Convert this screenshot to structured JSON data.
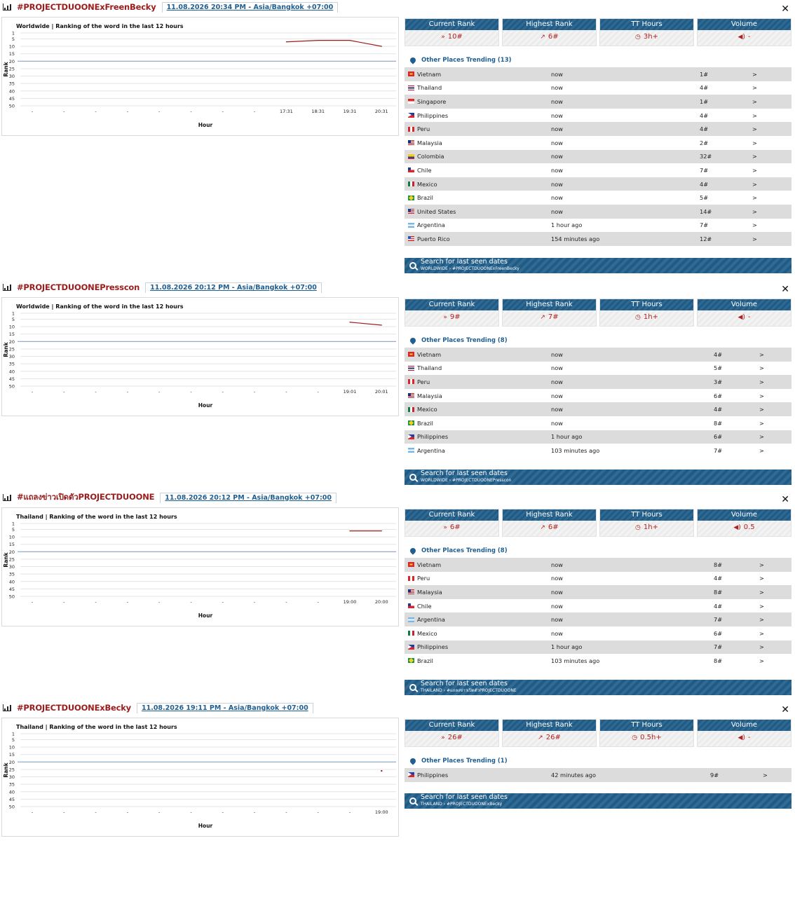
{
  "trends": [
    {
      "title": "#PROJECTDUOONExFreenBecky",
      "date": "11.08.2026 20:34 PM - Asia/Bangkok +07:00",
      "chart_data": {
        "type": "line",
        "title": "Worldwide | Ranking of the word in the last 12 hours",
        "xlabel": "Hour",
        "ylabel": "Rank",
        "y_ticks": [
          1,
          5,
          10,
          15,
          20,
          25,
          30,
          35,
          40,
          45,
          50
        ],
        "x_ticks": [
          "-",
          "-",
          "-",
          "-",
          "-",
          "-",
          "-",
          "-",
          "17:31",
          "18:31",
          "19:31",
          "20:31"
        ],
        "series": [
          {
            "x": [
              "17:31",
              "18:31",
              "19:31",
              "20:31"
            ],
            "values": [
              7,
              6,
              6,
              10
            ]
          }
        ],
        "reference_line": 20,
        "line_color": "#9b1c1c"
      },
      "stats": {
        "current_rank": "10#",
        "highest_rank": "6#",
        "tt_hours": "3h+",
        "volume": "-"
      },
      "places_heading": "Other Places Trending (13)",
      "places": [
        {
          "country": "Vietnam",
          "time": "now",
          "rank": "1#",
          "go": ">"
        },
        {
          "country": "Thailand",
          "time": "now",
          "rank": "4#",
          "go": ">"
        },
        {
          "country": "Singapore",
          "time": "now",
          "rank": "1#",
          "go": ">"
        },
        {
          "country": "Philippines",
          "time": "now",
          "rank": "4#",
          "go": ">"
        },
        {
          "country": "Peru",
          "time": "now",
          "rank": "4#",
          "go": ">"
        },
        {
          "country": "Malaysia",
          "time": "now",
          "rank": "2#",
          "go": ">"
        },
        {
          "country": "Colombia",
          "time": "now",
          "rank": "32#",
          "go": ">"
        },
        {
          "country": "Chile",
          "time": "now",
          "rank": "7#",
          "go": ">"
        },
        {
          "country": "Mexico",
          "time": "now",
          "rank": "4#",
          "go": ">"
        },
        {
          "country": "Brazil",
          "time": "now",
          "rank": "5#",
          "go": ">"
        },
        {
          "country": "United States",
          "time": "now",
          "rank": "14#",
          "go": ">"
        },
        {
          "country": "Argentina",
          "time": "1 hour ago",
          "rank": "7#",
          "go": ">"
        },
        {
          "country": "Puerto Rico",
          "time": "154 minutes ago",
          "rank": "12#",
          "go": ">"
        }
      ],
      "search": {
        "label": "Search for last seen dates",
        "path": "WORLDWIDE › #PROJECTDUOONExFreenBecky"
      }
    },
    {
      "title": "#PROJECTDUOONEPresscon",
      "date": "11.08.2026 20:12 PM - Asia/Bangkok +07:00",
      "chart_data": {
        "type": "line",
        "title": "Worldwide | Ranking of the word in the last 12 hours",
        "xlabel": "Hour",
        "ylabel": "Rank",
        "y_ticks": [
          1,
          5,
          10,
          15,
          20,
          25,
          30,
          35,
          40,
          45,
          50
        ],
        "x_ticks": [
          "-",
          "-",
          "-",
          "-",
          "-",
          "-",
          "-",
          "-",
          "-",
          "-",
          "19:01",
          "20:01"
        ],
        "series": [
          {
            "x": [
              "19:01",
              "20:01"
            ],
            "values": [
              7,
              9
            ]
          }
        ],
        "reference_line": 20,
        "line_color": "#9b1c1c"
      },
      "stats": {
        "current_rank": "9#",
        "highest_rank": "7#",
        "tt_hours": "1h+",
        "volume": "-"
      },
      "places_heading": "Other Places Trending (8)",
      "places": [
        {
          "country": "Vietnam",
          "time": "now",
          "rank": "4#",
          "go": ">"
        },
        {
          "country": "Thailand",
          "time": "now",
          "rank": "5#",
          "go": ">"
        },
        {
          "country": "Peru",
          "time": "now",
          "rank": "3#",
          "go": ">"
        },
        {
          "country": "Malaysia",
          "time": "now",
          "rank": "6#",
          "go": ">"
        },
        {
          "country": "Mexico",
          "time": "now",
          "rank": "4#",
          "go": ">"
        },
        {
          "country": "Brazil",
          "time": "now",
          "rank": "8#",
          "go": ">"
        },
        {
          "country": "Philippines",
          "time": "1 hour ago",
          "rank": "6#",
          "go": ">"
        },
        {
          "country": "Argentina",
          "time": "103 minutes ago",
          "rank": "7#",
          "go": ">"
        }
      ],
      "search": {
        "label": "Search for last seen dates",
        "path": "WORLDWIDE › #PROJECTDUOONEPresscon"
      }
    },
    {
      "title": "#แถลงข่าวเปิดตัวPROJECTDUOONE",
      "date": "11.08.2026 20:12 PM - Asia/Bangkok +07:00",
      "chart_data": {
        "type": "line",
        "title": "Thailand | Ranking of the word in the last 12 hours",
        "xlabel": "Hour",
        "ylabel": "Rank",
        "y_ticks": [
          1,
          5,
          10,
          15,
          20,
          25,
          30,
          35,
          40,
          45,
          50
        ],
        "x_ticks": [
          "-",
          "-",
          "-",
          "-",
          "-",
          "-",
          "-",
          "-",
          "-",
          "-",
          "19:00",
          "20:00"
        ],
        "series": [
          {
            "x": [
              "19:00",
              "20:00"
            ],
            "values": [
              6,
              6
            ]
          }
        ],
        "reference_line": 20,
        "line_color": "#9b1c1c"
      },
      "stats": {
        "current_rank": "6#",
        "highest_rank": "6#",
        "tt_hours": "1h+",
        "volume": "0.5"
      },
      "places_heading": "Other Places Trending (8)",
      "places": [
        {
          "country": "Vietnam",
          "time": "now",
          "rank": "8#",
          "go": ">"
        },
        {
          "country": "Peru",
          "time": "now",
          "rank": "4#",
          "go": ">"
        },
        {
          "country": "Malaysia",
          "time": "now",
          "rank": "8#",
          "go": ">"
        },
        {
          "country": "Chile",
          "time": "now",
          "rank": "4#",
          "go": ">"
        },
        {
          "country": "Argentina",
          "time": "now",
          "rank": "7#",
          "go": ">"
        },
        {
          "country": "Mexico",
          "time": "now",
          "rank": "6#",
          "go": ">"
        },
        {
          "country": "Philippines",
          "time": "1 hour ago",
          "rank": "7#",
          "go": ">"
        },
        {
          "country": "Brazil",
          "time": "103 minutes ago",
          "rank": "8#",
          "go": ">"
        }
      ],
      "search": {
        "label": "Search for last seen dates",
        "path": "THAILAND › #แถลงข่าวเปิดตัวPROJECTDUOONE"
      }
    },
    {
      "title": "#PROJECTDUOONExBecky",
      "date": "11.08.2026 19:11 PM - Asia/Bangkok +07:00",
      "chart_data": {
        "type": "line",
        "title": "Thailand | Ranking of the word in the last 12 hours",
        "xlabel": "Hour",
        "ylabel": "Rank",
        "y_ticks": [
          1,
          5,
          10,
          15,
          20,
          25,
          30,
          35,
          40,
          45,
          50
        ],
        "x_ticks": [
          "-",
          "-",
          "-",
          "-",
          "-",
          "-",
          "-",
          "-",
          "-",
          "-",
          "-",
          "19:00"
        ],
        "series": [
          {
            "x": [
              "19:00"
            ],
            "values": [
              26
            ]
          }
        ],
        "reference_line": 20,
        "line_color": "#9b1c1c"
      },
      "stats": {
        "current_rank": "26#",
        "highest_rank": "26#",
        "tt_hours": "0.5h+",
        "volume": "-"
      },
      "places_heading": "Other Places Trending (1)",
      "places": [
        {
          "country": "Philippines",
          "time": "42 minutes ago",
          "rank": "9#",
          "go": ">"
        }
      ],
      "search": {
        "label": "Search for last seen dates",
        "path": "THAILAND › #PROJECTDUOONExBecky"
      }
    }
  ],
  "labels": {
    "current_rank": "Current Rank",
    "highest_rank": "Highest Rank",
    "tt_hours": "TT Hours",
    "volume": "Volume",
    "close": "✕"
  },
  "icons": {
    "trend_icon": "bar-chart-icon",
    "current_icon": "chevron-right-icon",
    "highest_icon": "trend-up-icon",
    "hours_icon": "clock-icon",
    "volume_icon": "speaker-icon",
    "places_icon": "map-pin-icon",
    "search_icon": "search-icon"
  }
}
